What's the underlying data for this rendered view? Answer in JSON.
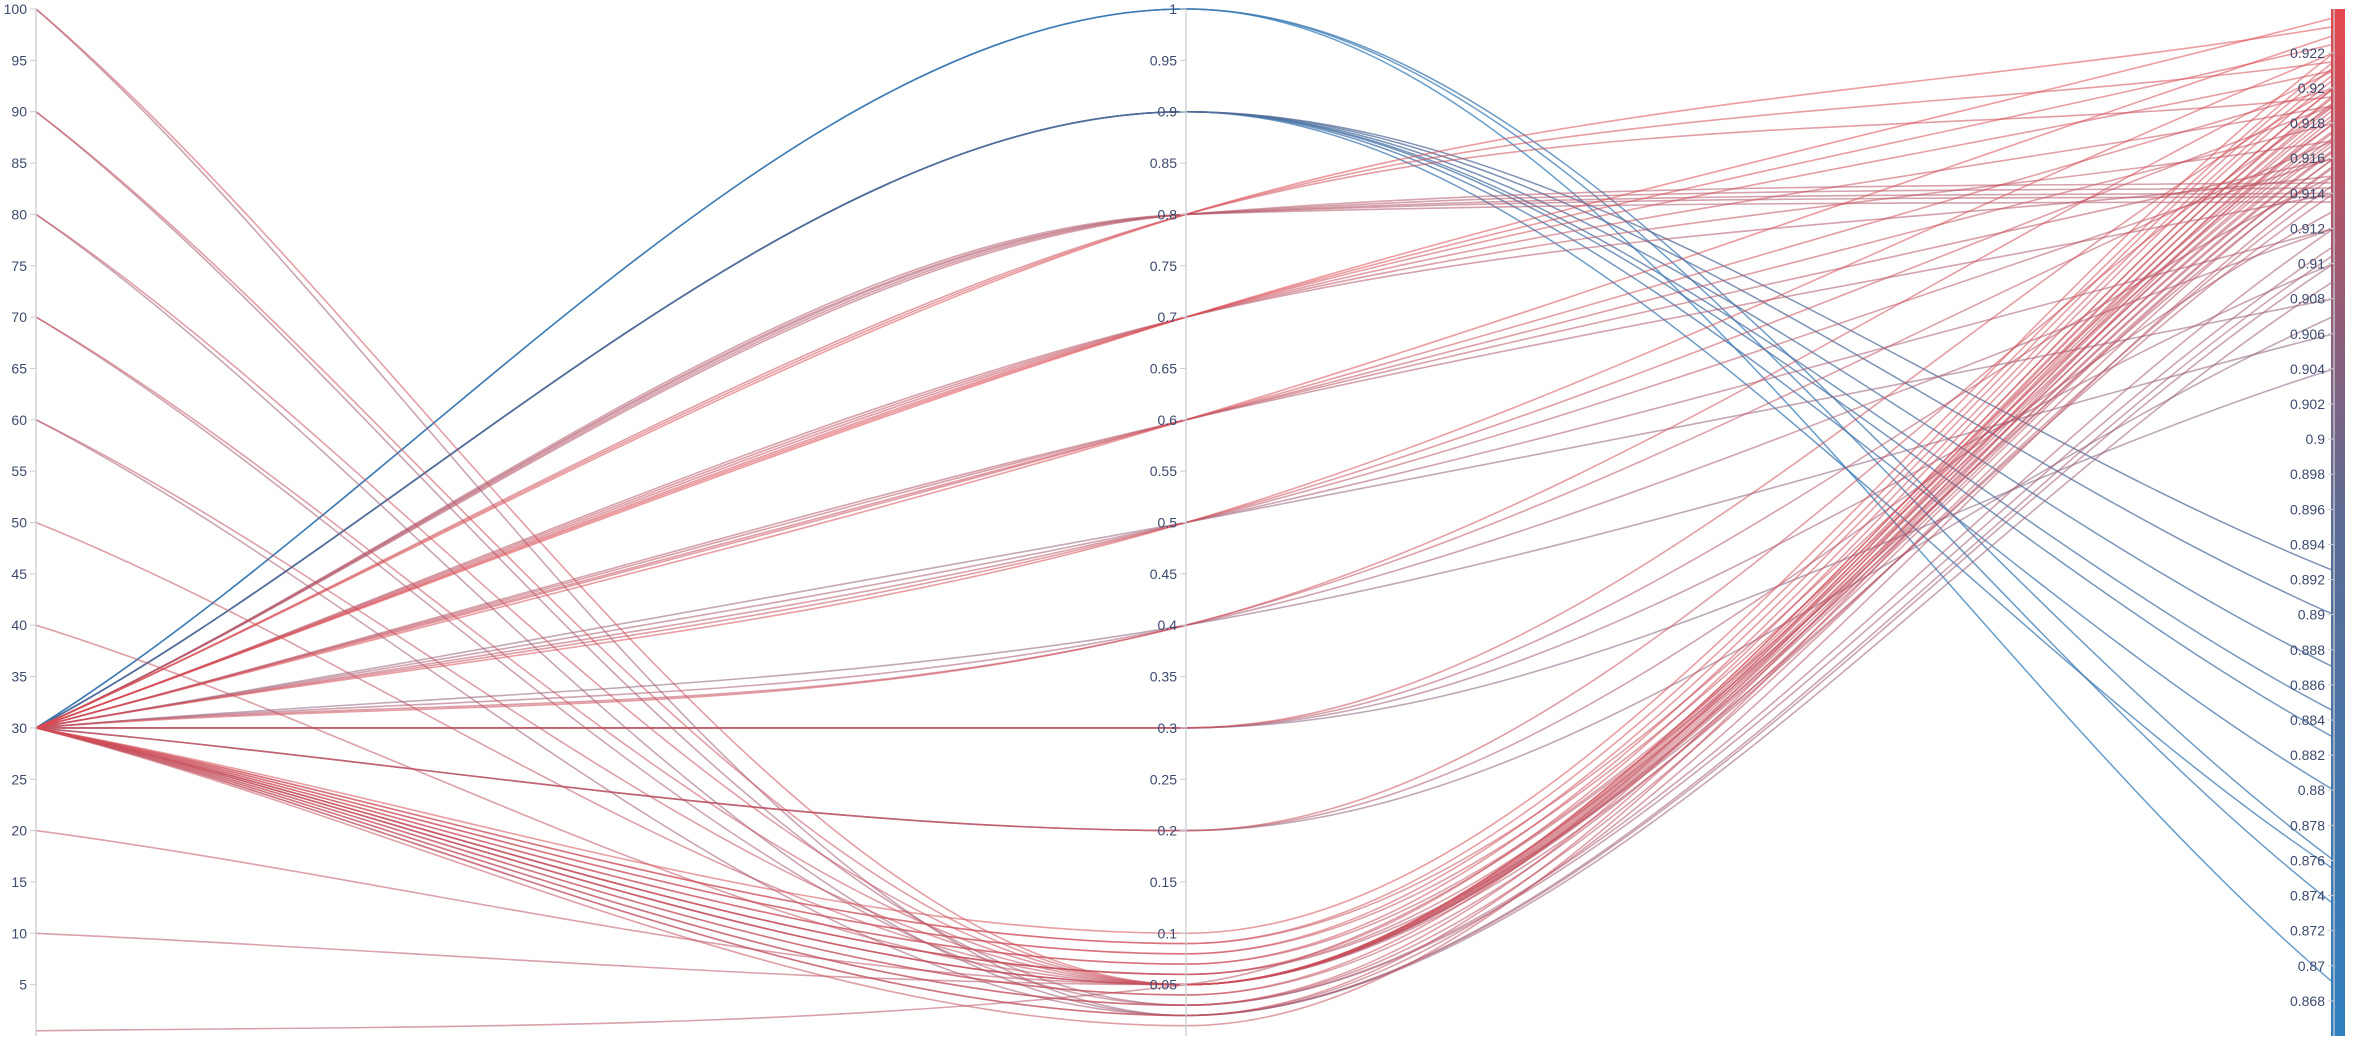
{
  "chart_data": {
    "type": "parallel-coordinates",
    "title": "",
    "curve": "smooth (monotone spline)",
    "color_dimension": 2,
    "colors": {
      "low": "#2f7fbf",
      "mid": "#5b6b94",
      "high": "#e5484d"
    },
    "color_range": [
      0.867,
      0.925
    ],
    "dimensions": [
      {
        "name": "",
        "range": [
          0,
          100
        ],
        "ticks": [
          "5",
          "10",
          "15",
          "20",
          "25",
          "30",
          "35",
          "40",
          "45",
          "50",
          "55",
          "60",
          "65",
          "70",
          "75",
          "80",
          "85",
          "90",
          "95",
          "100"
        ]
      },
      {
        "name": "",
        "range": [
          0,
          1
        ],
        "ticks": [
          "0.05",
          "0.1",
          "0.15",
          "0.2",
          "0.25",
          "0.3",
          "0.35",
          "0.4",
          "0.45",
          "0.5",
          "0.55",
          "0.6",
          "0.65",
          "0.7",
          "0.75",
          "0.8",
          "0.85",
          "0.9",
          "0.95",
          "1"
        ]
      },
      {
        "name": "",
        "range": [
          0.866,
          0.9245
        ],
        "ticks": [
          "0.868",
          "0.87",
          "0.872",
          "0.874",
          "0.876",
          "0.878",
          "0.88",
          "0.882",
          "0.884",
          "0.886",
          "0.888",
          "0.89",
          "0.892",
          "0.894",
          "0.896",
          "0.898",
          "0.9",
          "0.902",
          "0.904",
          "0.906",
          "0.908",
          "0.91",
          "0.912",
          "0.914",
          "0.916",
          "0.918",
          "0.92",
          "0.922"
        ]
      }
    ],
    "series": [
      [
        30,
        1.0,
        0.869
      ],
      [
        30,
        1.0,
        0.8735
      ],
      [
        30,
        1.0,
        0.876
      ],
      [
        30,
        0.9,
        0.8755
      ],
      [
        30,
        0.9,
        0.88
      ],
      [
        30,
        0.9,
        0.883
      ],
      [
        30,
        0.9,
        0.8845
      ],
      [
        30,
        0.9,
        0.887
      ],
      [
        30,
        0.9,
        0.89
      ],
      [
        30,
        0.9,
        0.8925
      ],
      [
        30,
        0.8,
        0.9135
      ],
      [
        30,
        0.8,
        0.9138
      ],
      [
        30,
        0.8,
        0.914
      ],
      [
        30,
        0.8,
        0.9143
      ],
      [
        30,
        0.8,
        0.9146
      ],
      [
        30,
        0.8,
        0.9235
      ],
      [
        30,
        0.8,
        0.9215
      ],
      [
        30,
        0.8,
        0.9195
      ],
      [
        30,
        0.7,
        0.924
      ],
      [
        30,
        0.7,
        0.9225
      ],
      [
        30,
        0.7,
        0.921
      ],
      [
        30,
        0.7,
        0.919
      ],
      [
        30,
        0.7,
        0.917
      ],
      [
        30,
        0.7,
        0.915
      ],
      [
        30,
        0.6,
        0.923
      ],
      [
        30,
        0.6,
        0.92
      ],
      [
        30,
        0.6,
        0.918
      ],
      [
        30,
        0.6,
        0.916
      ],
      [
        30,
        0.6,
        0.914
      ],
      [
        30,
        0.5,
        0.922
      ],
      [
        30,
        0.5,
        0.919
      ],
      [
        30,
        0.5,
        0.916
      ],
      [
        30,
        0.5,
        0.912
      ],
      [
        30,
        0.5,
        0.908
      ],
      [
        30,
        0.4,
        0.921
      ],
      [
        30,
        0.4,
        0.917
      ],
      [
        30,
        0.4,
        0.912
      ],
      [
        30,
        0.4,
        0.906
      ],
      [
        30,
        0.3,
        0.92
      ],
      [
        30,
        0.3,
        0.915
      ],
      [
        30,
        0.3,
        0.91
      ],
      [
        30,
        0.3,
        0.904
      ],
      [
        30,
        0.2,
        0.919
      ],
      [
        30,
        0.2,
        0.913
      ],
      [
        30,
        0.2,
        0.907
      ],
      [
        30,
        0.1,
        0.922
      ],
      [
        30,
        0.09,
        0.9215
      ],
      [
        30,
        0.08,
        0.9212
      ],
      [
        30,
        0.07,
        0.9208
      ],
      [
        30,
        0.06,
        0.9205
      ],
      [
        30,
        0.05,
        0.92
      ],
      [
        30,
        0.04,
        0.9196
      ],
      [
        30,
        0.03,
        0.9192
      ],
      [
        30,
        0.02,
        0.9188
      ],
      [
        30,
        0.01,
        0.9183
      ],
      [
        30,
        0.09,
        0.918
      ],
      [
        30,
        0.08,
        0.9176
      ],
      [
        30,
        0.07,
        0.9172
      ],
      [
        30,
        0.06,
        0.9168
      ],
      [
        30,
        0.05,
        0.9164
      ],
      [
        30,
        0.04,
        0.916
      ],
      [
        30,
        0.03,
        0.9156
      ],
      [
        30,
        0.02,
        0.915
      ],
      [
        30,
        0.05,
        0.9145
      ],
      [
        30,
        0.06,
        0.914
      ],
      [
        100,
        0.05,
        0.92
      ],
      [
        90,
        0.05,
        0.9195
      ],
      [
        80,
        0.05,
        0.919
      ],
      [
        70,
        0.05,
        0.9185
      ],
      [
        60,
        0.05,
        0.918
      ],
      [
        50,
        0.05,
        0.9175
      ],
      [
        40,
        0.05,
        0.917
      ],
      [
        20,
        0.05,
        0.9165
      ],
      [
        10,
        0.05,
        0.916
      ],
      [
        0.5,
        0.05,
        0.9155
      ],
      [
        100,
        0.02,
        0.91
      ],
      [
        90,
        0.03,
        0.911
      ],
      [
        80,
        0.02,
        0.909
      ],
      [
        70,
        0.03,
        0.912
      ],
      [
        60,
        0.02,
        0.9105
      ]
    ]
  }
}
